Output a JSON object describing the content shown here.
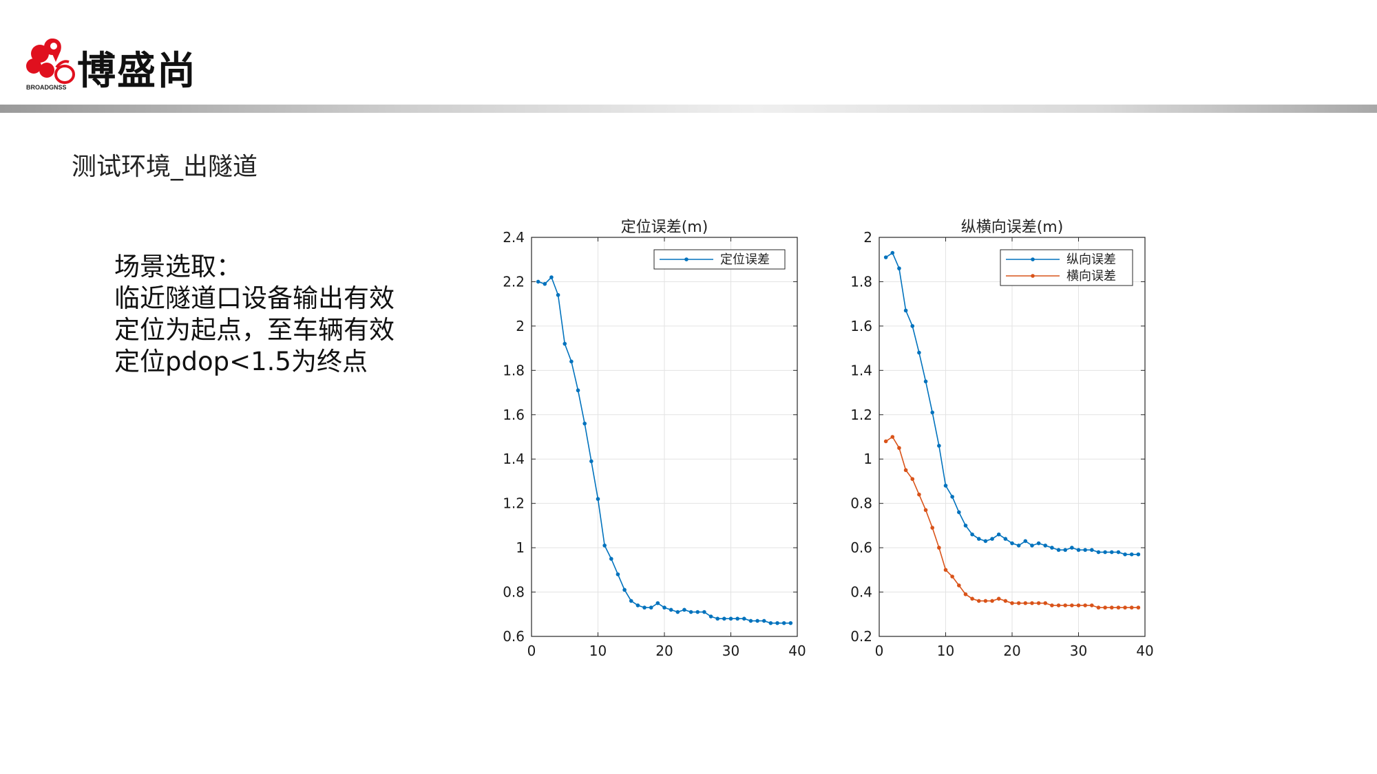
{
  "brand": {
    "name": "博盛尚",
    "logo_caption": "BROADGNSS",
    "logo_color": "#e0101e"
  },
  "section_title": "测试环境_出隧道",
  "description": {
    "lines": [
      "场景选取：",
      "临近隧道口设备输出有效",
      "定位为起点，至车辆有效",
      "定位pdop<1.5为终点"
    ]
  },
  "chart_data": [
    {
      "type": "line",
      "title": "定位误差(m)",
      "xlabel": "",
      "ylabel": "",
      "xlim": [
        0,
        40
      ],
      "ylim": [
        0.6,
        2.4
      ],
      "xticks": [
        "0",
        "10",
        "20",
        "30",
        "40"
      ],
      "yticks": [
        "0.6",
        "0.8",
        "1",
        "1.2",
        "1.4",
        "1.6",
        "1.8",
        "2",
        "2.2",
        "2.4"
      ],
      "grid": true,
      "legend_position": "top-right",
      "x": [
        1,
        2,
        3,
        4,
        5,
        6,
        7,
        8,
        9,
        10,
        11,
        12,
        13,
        14,
        15,
        16,
        17,
        18,
        19,
        20,
        21,
        22,
        23,
        24,
        25,
        26,
        27,
        28,
        29,
        30,
        31,
        32,
        33,
        34,
        35,
        36,
        37,
        38,
        39
      ],
      "series": [
        {
          "name": "定位误差",
          "color": "#0072bd",
          "values": [
            2.2,
            2.19,
            2.22,
            2.14,
            1.92,
            1.84,
            1.71,
            1.56,
            1.39,
            1.22,
            1.01,
            0.95,
            0.88,
            0.81,
            0.76,
            0.74,
            0.73,
            0.73,
            0.75,
            0.73,
            0.72,
            0.71,
            0.72,
            0.71,
            0.71,
            0.71,
            0.69,
            0.68,
            0.68,
            0.68,
            0.68,
            0.68,
            0.67,
            0.67,
            0.67,
            0.66,
            0.66,
            0.66,
            0.66
          ]
        }
      ]
    },
    {
      "type": "line",
      "title": "纵横向误差(m)",
      "xlabel": "",
      "ylabel": "",
      "xlim": [
        0,
        40
      ],
      "ylim": [
        0.2,
        2
      ],
      "xticks": [
        "0",
        "10",
        "20",
        "30",
        "40"
      ],
      "yticks": [
        "0.2",
        "0.4",
        "0.6",
        "0.8",
        "1",
        "1.2",
        "1.4",
        "1.6",
        "1.8",
        "2"
      ],
      "grid": true,
      "legend_position": "top-right",
      "x": [
        1,
        2,
        3,
        4,
        5,
        6,
        7,
        8,
        9,
        10,
        11,
        12,
        13,
        14,
        15,
        16,
        17,
        18,
        19,
        20,
        21,
        22,
        23,
        24,
        25,
        26,
        27,
        28,
        29,
        30,
        31,
        32,
        33,
        34,
        35,
        36,
        37,
        38,
        39
      ],
      "series": [
        {
          "name": "纵向误差",
          "color": "#0072bd",
          "values": [
            1.91,
            1.93,
            1.86,
            1.67,
            1.6,
            1.48,
            1.35,
            1.21,
            1.06,
            0.88,
            0.83,
            0.76,
            0.7,
            0.66,
            0.64,
            0.63,
            0.64,
            0.66,
            0.64,
            0.62,
            0.61,
            0.63,
            0.61,
            0.62,
            0.61,
            0.6,
            0.59,
            0.59,
            0.6,
            0.59,
            0.59,
            0.59,
            0.58,
            0.58,
            0.58,
            0.58,
            0.57,
            0.57,
            0.57
          ]
        },
        {
          "name": "横向误差",
          "color": "#d95319",
          "values": [
            1.08,
            1.1,
            1.05,
            0.95,
            0.91,
            0.84,
            0.77,
            0.69,
            0.6,
            0.5,
            0.47,
            0.43,
            0.39,
            0.37,
            0.36,
            0.36,
            0.36,
            0.37,
            0.36,
            0.35,
            0.35,
            0.35,
            0.35,
            0.35,
            0.35,
            0.34,
            0.34,
            0.34,
            0.34,
            0.34,
            0.34,
            0.34,
            0.33,
            0.33,
            0.33,
            0.33,
            0.33,
            0.33,
            0.33
          ]
        }
      ]
    }
  ]
}
